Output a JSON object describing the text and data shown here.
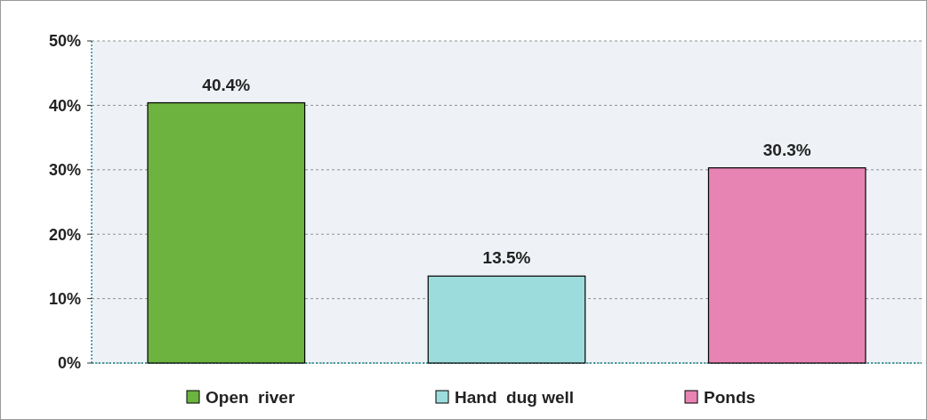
{
  "chart_data": {
    "type": "bar",
    "categories": [
      null,
      null,
      null
    ],
    "series": [
      {
        "name": "Open  river",
        "color": "#6cb33f",
        "values": [
          40.4,
          null,
          null
        ],
        "value_labels": [
          "40.4%",
          null,
          null
        ]
      },
      {
        "name": "Hand  dug well",
        "color": "#9ddcdc",
        "values": [
          null,
          13.5,
          null
        ],
        "value_labels": [
          null,
          "13.5%",
          null
        ]
      },
      {
        "name": "Ponds",
        "color": "#e884b4",
        "values": [
          null,
          null,
          30.3
        ],
        "value_labels": [
          null,
          null,
          "30.3%"
        ]
      }
    ],
    "ylim": [
      0,
      50
    ],
    "yticks": [
      {
        "value": 0,
        "label": "0%"
      },
      {
        "value": 10,
        "label": "10%"
      },
      {
        "value": 20,
        "label": "20%"
      },
      {
        "value": 30,
        "label": "30%"
      },
      {
        "value": 40,
        "label": "40%"
      },
      {
        "value": 50,
        "label": "50%"
      }
    ],
    "grid": "y",
    "legend": "bottom"
  }
}
